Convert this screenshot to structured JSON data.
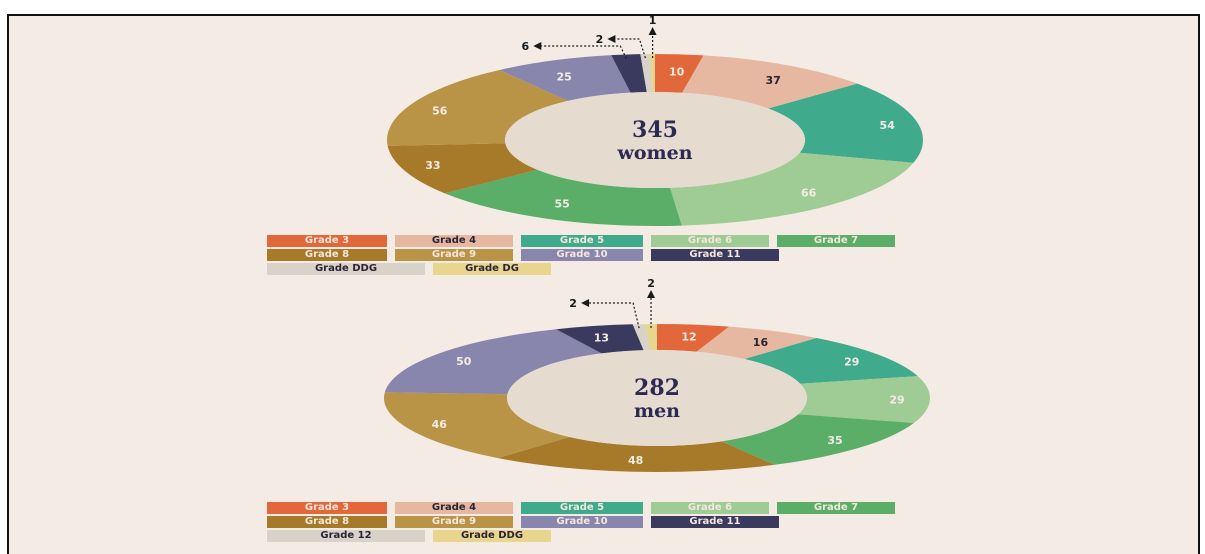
{
  "colors": {
    "page_bg": "#ffffff",
    "panel_bg": "#f3ebe4",
    "hole": "#e6dbcf",
    "center_text": "#2c2952",
    "label_light": "#f3ece4",
    "label_dark": "#2a2530",
    "leader": "#1a1a1a"
  },
  "chart_data": [
    {
      "type": "pie",
      "variant": "donut",
      "center_label": {
        "value": "345",
        "unit": "women"
      },
      "series": [
        {
          "name": "Grade 3",
          "value": 10,
          "label": "10",
          "color": "#e2673a"
        },
        {
          "name": "Grade 4",
          "value": 37,
          "label": "37",
          "color": "#e6b8a2"
        },
        {
          "name": "Grade 5",
          "value": 54,
          "label": "54",
          "color": "#3faa8c"
        },
        {
          "name": "Grade 6",
          "value": 66,
          "label": "66",
          "color": "#9fcb94"
        },
        {
          "name": "Grade 7",
          "value": 55,
          "label": "55",
          "color": "#5bae68"
        },
        {
          "name": "Grade 8",
          "value": 33,
          "label": "33",
          "color": "#a77a2a"
        },
        {
          "name": "Grade 9",
          "value": 56,
          "label": "56",
          "color": "#ba9446"
        },
        {
          "name": "Grade 10",
          "value": 25,
          "label": "25",
          "color": "#8886ad"
        },
        {
          "name": "Grade 11",
          "value": 6,
          "label": "6",
          "color": "#393a5e"
        },
        {
          "name": "Grade DDG",
          "value": 2,
          "label": "2",
          "color": "#d8d2c8"
        },
        {
          "name": "Grade DG",
          "value": 1,
          "label": "1",
          "color": "#e8d68e"
        }
      ],
      "legend": {
        "rows": [
          [
            "Grade 3",
            "Grade 4",
            "Grade 5",
            "Grade 6",
            "Grade 7"
          ],
          [
            "Grade 8",
            "Grade 9",
            "Grade 10",
            "Grade 11"
          ],
          [
            "Grade DDG",
            "Grade DG"
          ]
        ]
      }
    },
    {
      "type": "pie",
      "variant": "donut",
      "center_label": {
        "value": "282",
        "unit": "men"
      },
      "series": [
        {
          "name": "Grade 3",
          "value": 12,
          "label": "12",
          "color": "#e2673a"
        },
        {
          "name": "Grade 4",
          "value": 16,
          "label": "16",
          "color": "#e6b8a2"
        },
        {
          "name": "Grade 5",
          "value": 29,
          "label": "29",
          "color": "#3faa8c"
        },
        {
          "name": "Grade 6",
          "value": 29,
          "label": "29",
          "color": "#9fcb94"
        },
        {
          "name": "Grade 7",
          "value": 35,
          "label": "35",
          "color": "#5bae68"
        },
        {
          "name": "Grade 8",
          "value": 48,
          "label": "48",
          "color": "#a77a2a"
        },
        {
          "name": "Grade 9",
          "value": 46,
          "label": "46",
          "color": "#ba9446"
        },
        {
          "name": "Grade 10",
          "value": 50,
          "label": "50",
          "color": "#8886ad"
        },
        {
          "name": "Grade 11",
          "value": 13,
          "label": "13",
          "color": "#393a5e"
        },
        {
          "name": "Grade 12",
          "value": 2,
          "label": "2",
          "color": "#d8d2c8"
        },
        {
          "name": "Grade DDG",
          "value": 2,
          "label": "2",
          "color": "#e8d68e"
        }
      ],
      "legend": {
        "rows": [
          [
            "Grade 3",
            "Grade 4",
            "Grade 5",
            "Grade 6",
            "Grade 7"
          ],
          [
            "Grade 8",
            "Grade 9",
            "Grade 10",
            "Grade 11"
          ],
          [
            "Grade 12",
            "Grade DDG"
          ]
        ]
      }
    }
  ]
}
